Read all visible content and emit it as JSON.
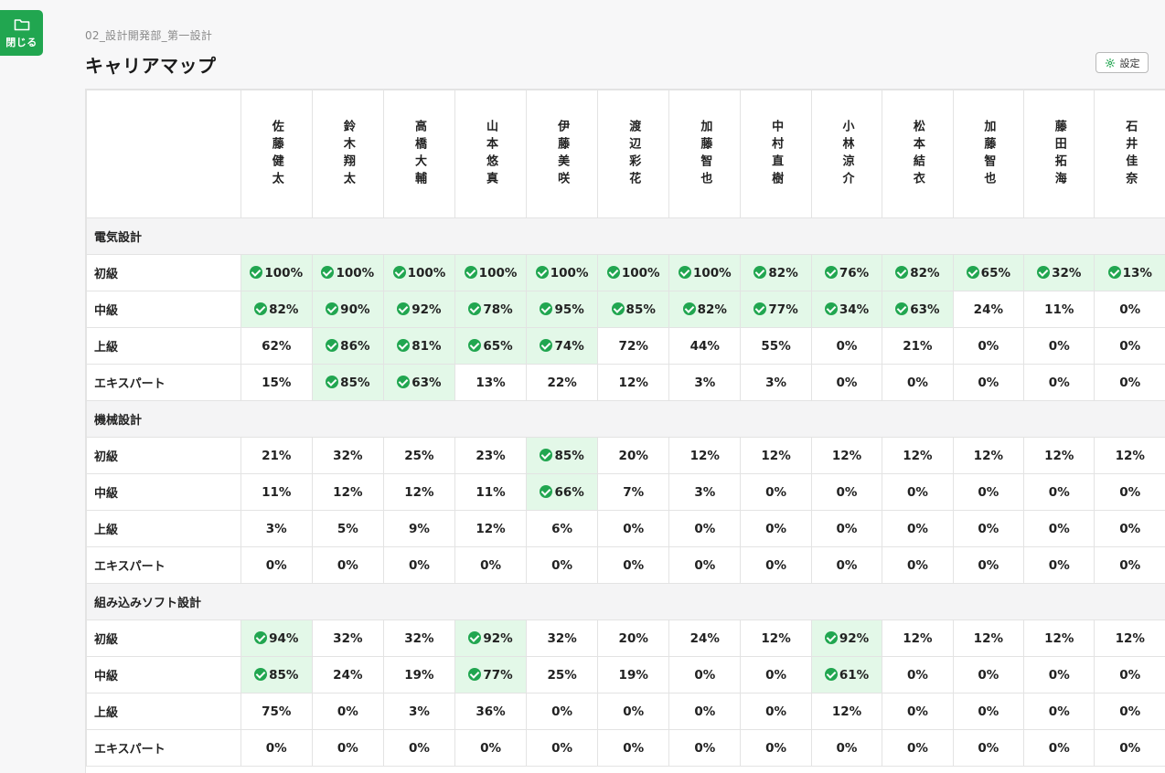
{
  "close_button": {
    "label": "閉じる",
    "icon": "folder-icon"
  },
  "breadcrumb": "02_設計開発部_第一設計",
  "title": "キャリアマップ",
  "settings_button": {
    "label": "設定",
    "icon": "gear-icon"
  },
  "colors": {
    "accent": "#21a650",
    "achieved_bg": "#e3f8e8",
    "category_bg": "#f4f4f5"
  },
  "employees": [
    "佐藤健太",
    "鈴木翔太",
    "高橋大輔",
    "山本悠真",
    "伊藤美咲",
    "渡辺彩花",
    "加藤智也",
    "中村直樹",
    "小林涼介",
    "松本結衣",
    "加藤智也",
    "藤田拓海",
    "石井佳奈"
  ],
  "categories": [
    {
      "name": "電気設計",
      "rows": [
        {
          "level": "初級",
          "values": [
            "100%",
            "100%",
            "100%",
            "100%",
            "100%",
            "100%",
            "100%",
            "82%",
            "76%",
            "82%",
            "65%",
            "32%",
            "13%"
          ],
          "achieved": [
            true,
            true,
            true,
            true,
            true,
            true,
            true,
            true,
            true,
            true,
            true,
            true,
            true
          ]
        },
        {
          "level": "中級",
          "values": [
            "82%",
            "90%",
            "92%",
            "78%",
            "95%",
            "85%",
            "82%",
            "77%",
            "34%",
            "63%",
            "24%",
            "11%",
            "0%"
          ],
          "achieved": [
            true,
            true,
            true,
            true,
            true,
            true,
            true,
            true,
            true,
            true,
            false,
            false,
            false
          ]
        },
        {
          "level": "上級",
          "values": [
            "62%",
            "86%",
            "81%",
            "65%",
            "74%",
            "72%",
            "44%",
            "55%",
            "0%",
            "21%",
            "0%",
            "0%",
            "0%"
          ],
          "achieved": [
            false,
            true,
            true,
            true,
            true,
            false,
            false,
            false,
            false,
            false,
            false,
            false,
            false
          ]
        },
        {
          "level": "エキスパート",
          "values": [
            "15%",
            "85%",
            "63%",
            "13%",
            "22%",
            "12%",
            "3%",
            "3%",
            "0%",
            "0%",
            "0%",
            "0%",
            "0%"
          ],
          "achieved": [
            false,
            true,
            true,
            false,
            false,
            false,
            false,
            false,
            false,
            false,
            false,
            false,
            false
          ]
        }
      ]
    },
    {
      "name": "機械設計",
      "rows": [
        {
          "level": "初級",
          "values": [
            "21%",
            "32%",
            "25%",
            "23%",
            "85%",
            "20%",
            "12%",
            "12%",
            "12%",
            "12%",
            "12%",
            "12%",
            "12%"
          ],
          "achieved": [
            false,
            false,
            false,
            false,
            true,
            false,
            false,
            false,
            false,
            false,
            false,
            false,
            false
          ]
        },
        {
          "level": "中級",
          "values": [
            "11%",
            "12%",
            "12%",
            "11%",
            "66%",
            "7%",
            "3%",
            "0%",
            "0%",
            "0%",
            "0%",
            "0%",
            "0%"
          ],
          "achieved": [
            false,
            false,
            false,
            false,
            true,
            false,
            false,
            false,
            false,
            false,
            false,
            false,
            false
          ]
        },
        {
          "level": "上級",
          "values": [
            "3%",
            "5%",
            "9%",
            "12%",
            "6%",
            "0%",
            "0%",
            "0%",
            "0%",
            "0%",
            "0%",
            "0%",
            "0%"
          ],
          "achieved": [
            false,
            false,
            false,
            false,
            false,
            false,
            false,
            false,
            false,
            false,
            false,
            false,
            false
          ]
        },
        {
          "level": "エキスパート",
          "values": [
            "0%",
            "0%",
            "0%",
            "0%",
            "0%",
            "0%",
            "0%",
            "0%",
            "0%",
            "0%",
            "0%",
            "0%",
            "0%"
          ],
          "achieved": [
            false,
            false,
            false,
            false,
            false,
            false,
            false,
            false,
            false,
            false,
            false,
            false,
            false
          ]
        }
      ]
    },
    {
      "name": "組み込みソフト設計",
      "rows": [
        {
          "level": "初級",
          "values": [
            "94%",
            "32%",
            "32%",
            "92%",
            "32%",
            "20%",
            "24%",
            "12%",
            "92%",
            "12%",
            "12%",
            "12%",
            "12%"
          ],
          "achieved": [
            true,
            false,
            false,
            true,
            false,
            false,
            false,
            false,
            true,
            false,
            false,
            false,
            false
          ]
        },
        {
          "level": "中級",
          "values": [
            "85%",
            "24%",
            "19%",
            "77%",
            "25%",
            "19%",
            "0%",
            "0%",
            "61%",
            "0%",
            "0%",
            "0%",
            "0%"
          ],
          "achieved": [
            true,
            false,
            false,
            true,
            false,
            false,
            false,
            false,
            true,
            false,
            false,
            false,
            false
          ]
        },
        {
          "level": "上級",
          "values": [
            "75%",
            "0%",
            "3%",
            "36%",
            "0%",
            "0%",
            "0%",
            "0%",
            "12%",
            "0%",
            "0%",
            "0%",
            "0%"
          ],
          "achieved": [
            false,
            false,
            false,
            false,
            false,
            false,
            false,
            false,
            false,
            false,
            false,
            false,
            false
          ]
        },
        {
          "level": "エキスパート",
          "values": [
            "0%",
            "0%",
            "0%",
            "0%",
            "0%",
            "0%",
            "0%",
            "0%",
            "0%",
            "0%",
            "0%",
            "0%",
            "0%"
          ],
          "achieved": [
            false,
            false,
            false,
            false,
            false,
            false,
            false,
            false,
            false,
            false,
            false,
            false,
            false
          ]
        }
      ]
    }
  ]
}
